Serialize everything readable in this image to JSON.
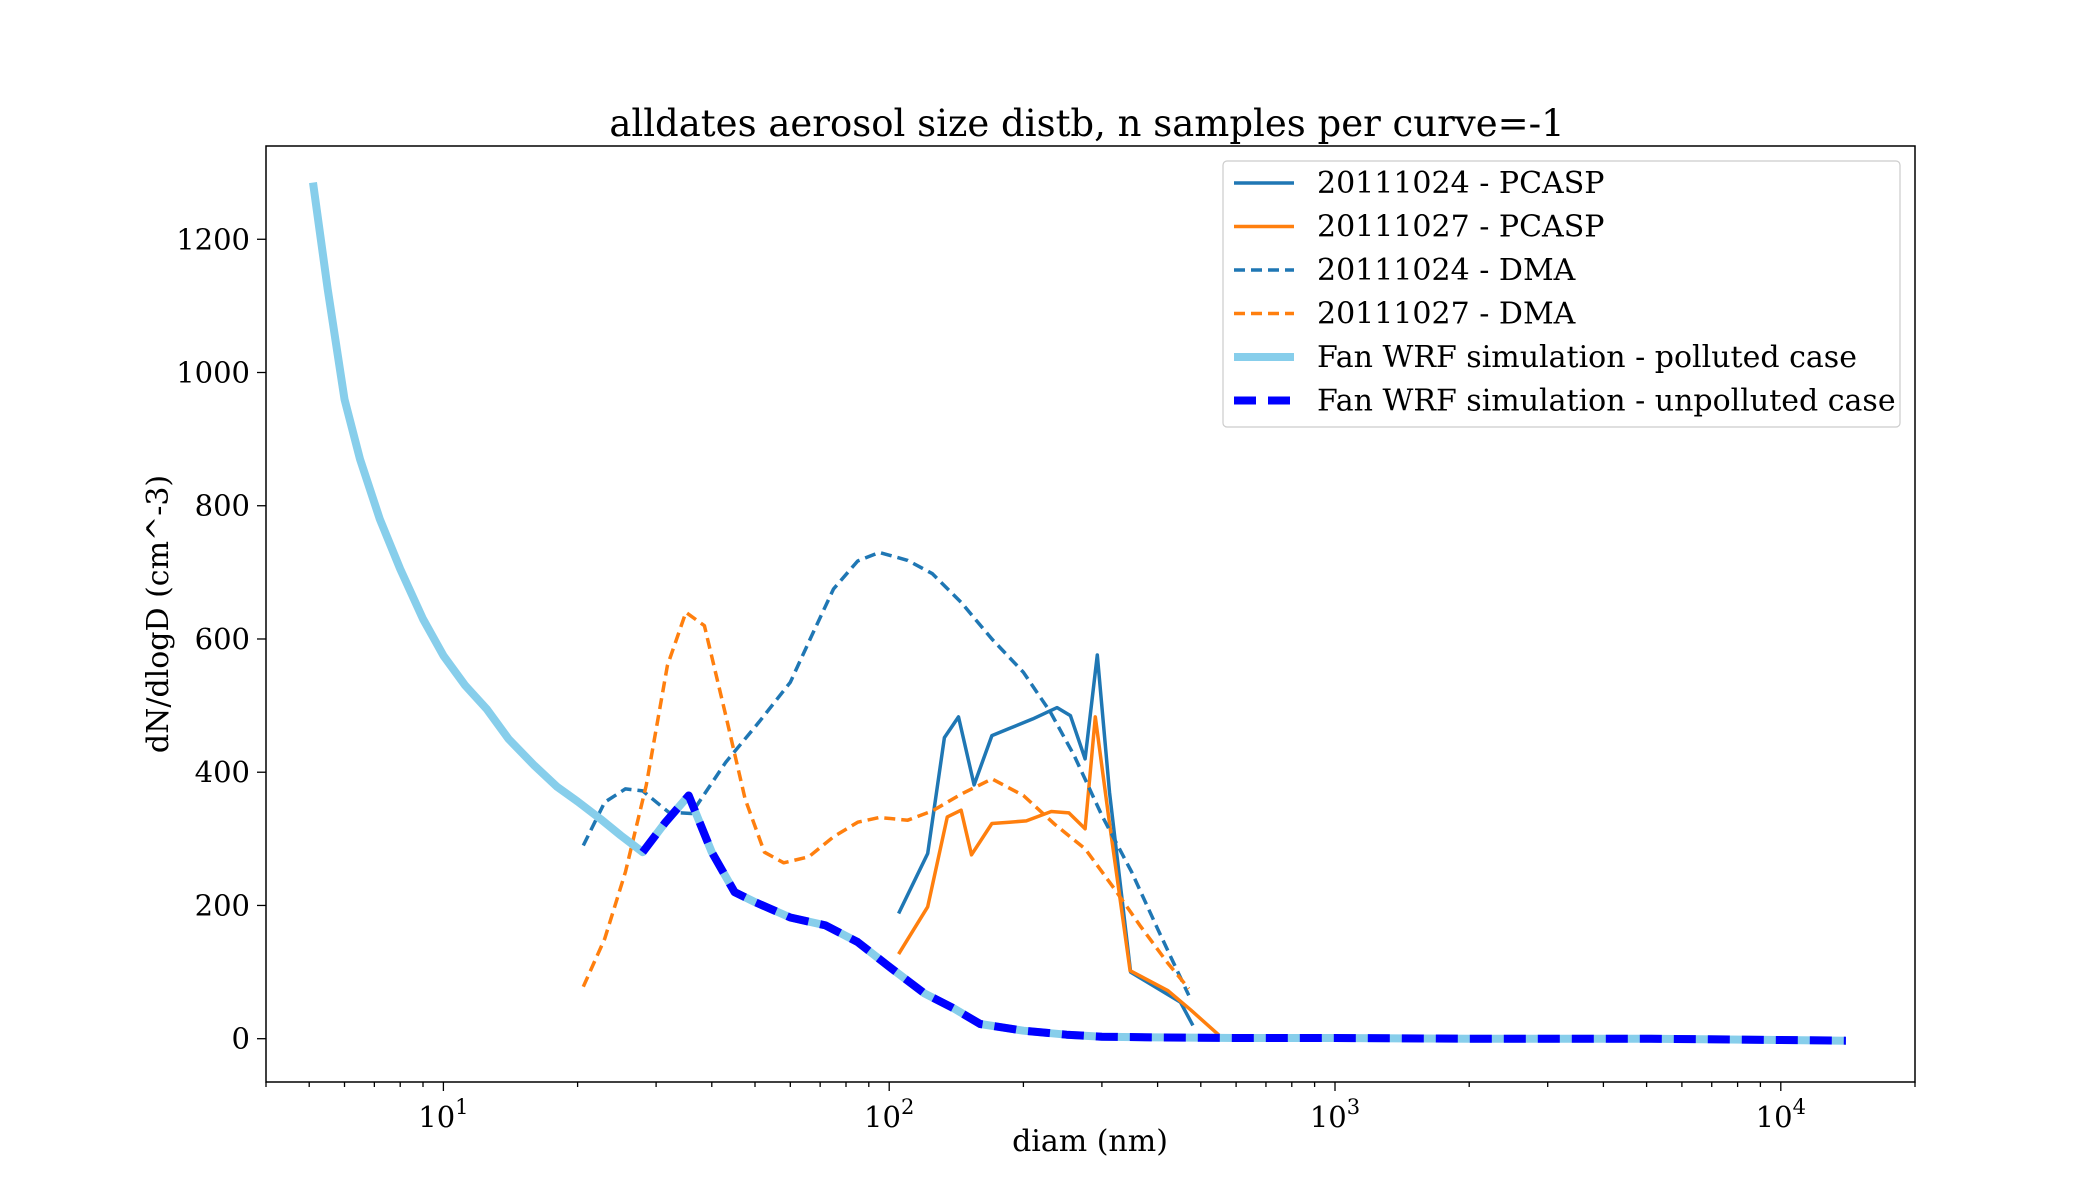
{
  "chart_data": {
    "type": "line",
    "title": "alldates aerosol size distb, n samples per curve=-1",
    "xlabel": "diam (nm)",
    "ylabel": "dN/dlogD (cm^-3)",
    "xscale": "log",
    "xlim": [
      4,
      20000
    ],
    "ylim": [
      -65,
      1340
    ],
    "grid": false,
    "legend_position": "top-right",
    "x_ticks": [
      {
        "value": 10,
        "base": "10",
        "exp": "1"
      },
      {
        "value": 100,
        "base": "10",
        "exp": "2"
      },
      {
        "value": 1000,
        "base": "10",
        "exp": "3"
      },
      {
        "value": 10000,
        "base": "10",
        "exp": "4"
      }
    ],
    "y_ticks": [
      0,
      200,
      400,
      600,
      800,
      1000,
      1200
    ],
    "series": [
      {
        "name": "20111024 - PCASP",
        "color": "#1f77b4",
        "style": "solid",
        "width": 3.5,
        "x": [
          105,
          122,
          133,
          143,
          155,
          170,
          185,
          210,
          238,
          255,
          275,
          293,
          312,
          348,
          450,
          480
        ],
        "y": [
          188,
          278,
          452,
          483,
          381,
          455,
          465,
          480,
          497,
          485,
          420,
          576,
          370,
          100,
          55,
          20
        ]
      },
      {
        "name": "20111027 - PCASP",
        "color": "#ff7f0e",
        "style": "solid",
        "width": 3.5,
        "x": [
          105,
          122,
          135,
          145,
          153,
          170,
          186,
          203,
          231,
          253,
          275,
          290,
          311,
          347,
          422,
          475,
          550
        ],
        "y": [
          127,
          198,
          333,
          343,
          276,
          323,
          325,
          327,
          341,
          339,
          315,
          483,
          330,
          102,
          72,
          43,
          5
        ]
      },
      {
        "name": "20111024 - DMA",
        "color": "#1f77b4",
        "style": "dashed",
        "width": 3.5,
        "x": [
          20.6,
          23,
          25.6,
          28,
          32,
          36,
          43,
          51,
          60,
          67,
          75,
          85,
          95,
          110,
          125,
          145,
          170,
          200,
          230,
          260,
          300,
          350,
          400,
          470
        ],
        "y": [
          290,
          355,
          375,
          372,
          340,
          338,
          415,
          475,
          535,
          605,
          675,
          717,
          730,
          718,
          698,
          655,
          600,
          550,
          490,
          425,
          335,
          250,
          165,
          65
        ]
      },
      {
        "name": "20111027 - DMA",
        "color": "#ff7f0e",
        "style": "dashed",
        "width": 3.5,
        "x": [
          20.6,
          23,
          25.6,
          28.5,
          31.8,
          35,
          38.5,
          43,
          47.5,
          52.5,
          58,
          66,
          75,
          85,
          95,
          110,
          125,
          145,
          170,
          200,
          235,
          275,
          320,
          365,
          420,
          470
        ],
        "y": [
          78,
          150,
          250,
          380,
          560,
          640,
          620,
          485,
          360,
          280,
          264,
          273,
          303,
          325,
          332,
          328,
          342,
          367,
          390,
          365,
          322,
          285,
          225,
          170,
          115,
          75
        ]
      },
      {
        "name": "Fan WRF simulation - polluted case",
        "color": "#87ceeb",
        "style": "solid",
        "width": 8,
        "x": [
          5.1,
          5.5,
          6.0,
          6.5,
          7.2,
          8.0,
          9.0,
          10.0,
          11.2,
          12.5,
          14.0,
          16.0,
          18.0,
          20.0,
          22.5,
          25.0,
          28.0,
          31.5,
          35.5,
          40,
          45,
          50,
          60,
          72,
          85,
          100,
          120,
          140,
          160,
          200,
          250,
          300,
          400,
          600,
          1000,
          2000,
          5000,
          10000,
          14000
        ],
        "y": [
          1285,
          1125,
          960,
          870,
          780,
          705,
          630,
          575,
          530,
          495,
          450,
          410,
          378,
          356,
          330,
          305,
          280,
          325,
          365,
          280,
          220,
          205,
          182,
          170,
          145,
          108,
          68,
          45,
          22,
          12,
          6,
          3,
          2,
          1,
          1,
          0,
          0,
          -2,
          -3
        ]
      },
      {
        "name": "Fan WRF simulation - unpolluted case",
        "color": "#0000ff",
        "style": "dashed",
        "width": 8,
        "x": [
          28,
          31.5,
          35.5,
          40,
          45,
          50,
          60,
          72,
          85,
          100,
          120,
          140,
          160,
          200,
          250,
          300,
          400,
          600,
          1000,
          2000,
          5000,
          10000,
          14000
        ],
        "y": [
          280,
          325,
          365,
          280,
          220,
          205,
          182,
          170,
          145,
          108,
          68,
          45,
          22,
          12,
          6,
          3,
          2,
          1,
          1,
          0,
          0,
          -2,
          -3
        ]
      }
    ]
  }
}
